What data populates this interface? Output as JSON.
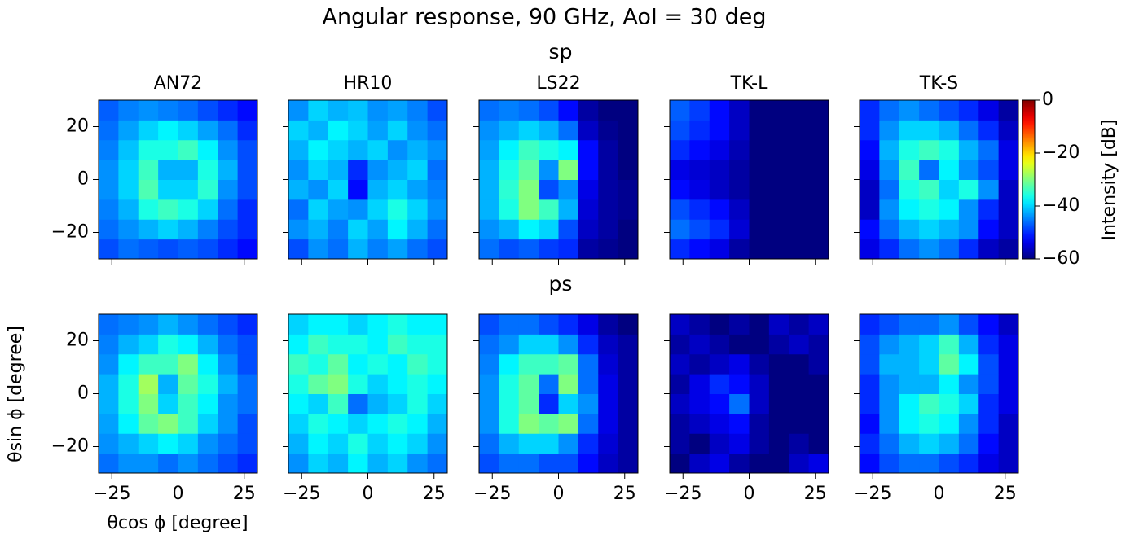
{
  "chart_data": {
    "type": "heatmap",
    "title": "Angular response, 90 GHz, AoI = 30 deg",
    "columns": [
      "AN72",
      "HR10",
      "LS22",
      "TK-L",
      "TK-S"
    ],
    "rows": [
      {
        "name": "sp",
        "z": [
          [
            [
              -48,
              -46,
              -47,
              -48,
              -47,
              -48,
              -50,
              -52
            ],
            [
              -46,
              -44,
              -42,
              -40,
              -42,
              -45,
              -48,
              -50
            ],
            [
              -45,
              -42,
              -36,
              -34,
              -36,
              -40,
              -46,
              -50
            ],
            [
              -44,
              -40,
              -33,
              -40,
              -40,
              -35,
              -44,
              -48
            ],
            [
              -44,
              -40,
              -34,
              -42,
              -42,
              -36,
              -42,
              -48
            ],
            [
              -45,
              -41,
              -36,
              -36,
              -34,
              -38,
              -44,
              -48
            ],
            [
              -46,
              -43,
              -40,
              -38,
              -40,
              -43,
              -46,
              -50
            ],
            [
              -47,
              -45,
              -44,
              -45,
              -46,
              -48,
              -50,
              -52
            ]
          ],
          [
            [
              -48,
              -44,
              -46,
              -42,
              -45,
              -43,
              -46,
              -48
            ],
            [
              -44,
              -42,
              -45,
              -40,
              -43,
              -38,
              -42,
              -46
            ],
            [
              -46,
              -40,
              -43,
              -44,
              -40,
              -36,
              -40,
              -44
            ],
            [
              -42,
              -44,
              -40,
              -52,
              -42,
              -40,
              -43,
              -45
            ],
            [
              -44,
              -40,
              -42,
              -50,
              -44,
              -42,
              -40,
              -46
            ],
            [
              -42,
              -38,
              -40,
              -42,
              -40,
              -44,
              -42,
              -44
            ],
            [
              -40,
              -42,
              -38,
              -40,
              -43,
              -40,
              -44,
              -46
            ],
            [
              -44,
              -40,
              -42,
              -41,
              -44,
              -43,
              -45,
              -48
            ]
          ],
          [
            [
              -46,
              -48,
              -47,
              -49,
              -50,
              -58,
              -59,
              -60
            ],
            [
              -44,
              -42,
              -38,
              -40,
              -48,
              -56,
              -58,
              -60
            ],
            [
              -42,
              -36,
              -30,
              -34,
              -42,
              -55,
              -58,
              -59
            ],
            [
              -42,
              -35,
              -30,
              -48,
              -44,
              -54,
              -58,
              -59
            ],
            [
              -42,
              -36,
              -32,
              -44,
              -30,
              -52,
              -58,
              -60
            ],
            [
              -43,
              -38,
              -34,
              -36,
              -38,
              -52,
              -58,
              -60
            ],
            [
              -44,
              -42,
              -40,
              -42,
              -46,
              -56,
              -59,
              -60
            ],
            [
              -46,
              -45,
              -46,
              -48,
              -52,
              -58,
              -60,
              -60
            ]
          ],
          [
            [
              -50,
              -52,
              -54,
              -58,
              -60,
              -60,
              -60,
              -60
            ],
            [
              -46,
              -48,
              -50,
              -55,
              -60,
              -60,
              -60,
              -60
            ],
            [
              -48,
              -50,
              -52,
              -56,
              -60,
              -60,
              -60,
              -60
            ],
            [
              -52,
              -54,
              -56,
              -58,
              -60,
              -60,
              -60,
              -60
            ],
            [
              -54,
              -55,
              -56,
              -58,
              -60,
              -60,
              -60,
              -60
            ],
            [
              -50,
              -52,
              -54,
              -57,
              -60,
              -60,
              -60,
              -60
            ],
            [
              -48,
              -50,
              -52,
              -56,
              -60,
              -60,
              -60,
              -60
            ],
            [
              -47,
              -49,
              -52,
              -56,
              -60,
              -60,
              -60,
              -60
            ]
          ],
          [
            [
              -54,
              -50,
              -46,
              -44,
              -46,
              -50,
              -56,
              -58
            ],
            [
              -52,
              -46,
              -42,
              -40,
              -42,
              -44,
              -52,
              -56
            ],
            [
              -56,
              -44,
              -38,
              -36,
              -38,
              -44,
              -50,
              -56
            ],
            [
              -56,
              -46,
              -36,
              -34,
              -40,
              -36,
              -44,
              -56
            ],
            [
              -54,
              -44,
              -34,
              -46,
              -38,
              -44,
              -48,
              -54
            ],
            [
              -52,
              -42,
              -36,
              -34,
              -36,
              -42,
              -46,
              -54
            ],
            [
              -50,
              -44,
              -40,
              -40,
              -42,
              -46,
              -50,
              -56
            ],
            [
              -50,
              -46,
              -44,
              -46,
              -48,
              -50,
              -54,
              -58
            ]
          ]
        ]
      },
      {
        "name": "ps",
        "z": [
          [
            [
              -46,
              -44,
              -44,
              -46,
              -44,
              -46,
              -48,
              -50
            ],
            [
              -44,
              -42,
              -40,
              -38,
              -40,
              -44,
              -46,
              -48
            ],
            [
              -43,
              -38,
              -32,
              -30,
              -34,
              -40,
              -44,
              -48
            ],
            [
              -42,
              -36,
              -30,
              -40,
              -34,
              -38,
              -44,
              -46
            ],
            [
              -42,
              -36,
              -28,
              -42,
              -32,
              -36,
              -42,
              -46
            ],
            [
              -44,
              -38,
              -34,
              -34,
              -30,
              -38,
              -44,
              -48
            ],
            [
              -45,
              -42,
              -40,
              -36,
              -38,
              -42,
              -46,
              -48
            ],
            [
              -46,
              -45,
              -44,
              -42,
              -44,
              -46,
              -48,
              -50
            ]
          ],
          [
            [
              -44,
              -40,
              -42,
              -38,
              -42,
              -40,
              -44,
              -46
            ],
            [
              -42,
              -38,
              -40,
              -36,
              -40,
              -38,
              -40,
              -44
            ],
            [
              -40,
              -36,
              -38,
              -40,
              -38,
              -36,
              -38,
              -42
            ],
            [
              -38,
              -40,
              -34,
              -46,
              -42,
              -40,
              -36,
              -40
            ],
            [
              -36,
              -32,
              -30,
              -36,
              -40,
              -38,
              -36,
              -38
            ],
            [
              -34,
              -36,
              -32,
              -38,
              -36,
              -38,
              -34,
              -36
            ],
            [
              -38,
              -34,
              -36,
              -36,
              -38,
              -34,
              -36,
              -36
            ],
            [
              -40,
              -38,
              -38,
              -40,
              -38,
              -36,
              -38,
              -38
            ]
          ],
          [
            [
              -48,
              -46,
              -46,
              -48,
              -48,
              -52,
              -56,
              -58
            ],
            [
              -46,
              -42,
              -40,
              -40,
              -44,
              -50,
              -55,
              -58
            ],
            [
              -44,
              -36,
              -30,
              -32,
              -30,
              -46,
              -54,
              -58
            ],
            [
              -44,
              -36,
              -32,
              -50,
              -40,
              -44,
              -54,
              -58
            ],
            [
              -44,
              -36,
              -32,
              -46,
              -30,
              -46,
              -54,
              -58
            ],
            [
              -45,
              -38,
              -34,
              -34,
              -32,
              -46,
              -55,
              -58
            ],
            [
              -46,
              -44,
              -40,
              -40,
              -44,
              -50,
              -56,
              -58
            ],
            [
              -48,
              -46,
              -46,
              -48,
              -50,
              -54,
              -58,
              -60
            ]
          ],
          [
            [
              -60,
              -56,
              -54,
              -58,
              -60,
              -60,
              -56,
              -54
            ],
            [
              -58,
              -60,
              -56,
              -54,
              -58,
              -60,
              -58,
              -60
            ],
            [
              -58,
              -56,
              -54,
              -52,
              -58,
              -60,
              -60,
              -60
            ],
            [
              -56,
              -54,
              -52,
              -46,
              -56,
              -60,
              -60,
              -60
            ],
            [
              -58,
              -54,
              -50,
              -52,
              -56,
              -60,
              -60,
              -60
            ],
            [
              -56,
              -58,
              -56,
              -54,
              -58,
              -60,
              -60,
              -58
            ],
            [
              -58,
              -56,
              -58,
              -60,
              -60,
              -58,
              -56,
              -58
            ],
            [
              -56,
              -58,
              -60,
              -58,
              -60,
              -56,
              -58,
              -56
            ]
          ],
          [
            [
              -52,
              -48,
              -46,
              -46,
              -48,
              -50,
              -54,
              -56
            ],
            [
              -50,
              -46,
              -42,
              -40,
              -42,
              -46,
              -52,
              -56
            ],
            [
              -52,
              -44,
              -38,
              -36,
              -38,
              -44,
              -50,
              -56
            ],
            [
              -50,
              -44,
              -38,
              -34,
              -36,
              -40,
              -50,
              -54
            ],
            [
              -50,
              -44,
              -42,
              -42,
              -38,
              -44,
              -48,
              -54
            ],
            [
              -48,
              -42,
              -42,
              -40,
              -32,
              -38,
              -48,
              -54
            ],
            [
              -48,
              -44,
              -42,
              -40,
              -34,
              -42,
              -50,
              -54
            ],
            [
              -50,
              -48,
              -46,
              -46,
              -44,
              -48,
              -52,
              -56
            ]
          ]
        ]
      }
    ],
    "xlim": [
      -30,
      30
    ],
    "ylim": [
      -30,
      30
    ],
    "xticks": [
      {
        "value": -25,
        "label": "−25"
      },
      0,
      25
    ],
    "yticks": [
      {
        "value": -20,
        "label": "−20"
      },
      0,
      20
    ],
    "xlabel": "θcos ϕ [degree]",
    "ylabel": "θsin ϕ [degree]",
    "colormap": "jet",
    "colorbar": {
      "label": "Intensity [dB]",
      "lim": [
        -60,
        0
      ],
      "ticks": [
        0,
        {
          "value": -20,
          "label": "−20"
        },
        {
          "value": -40,
          "label": "−40"
        },
        {
          "value": -60,
          "label": "−60"
        }
      ]
    }
  }
}
